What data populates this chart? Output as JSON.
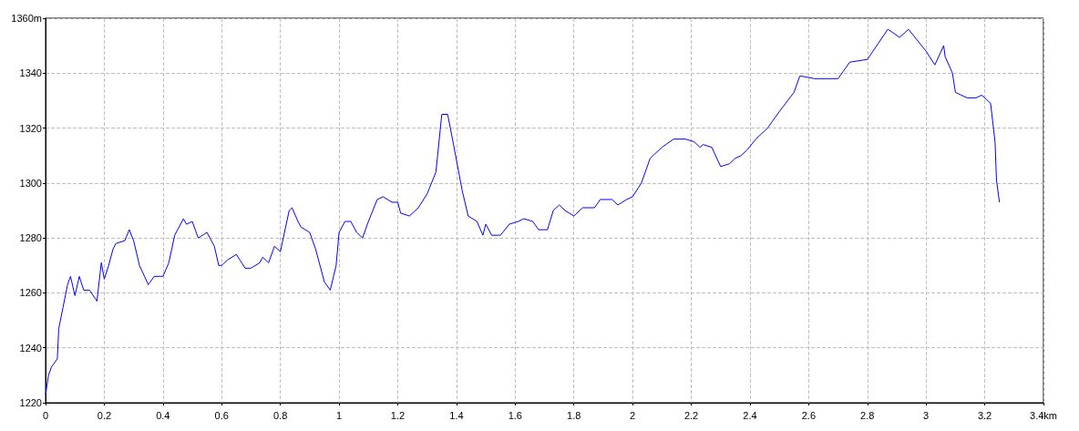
{
  "chart_data": {
    "type": "line",
    "x": [
      0,
      0.01,
      0.02,
      0.04,
      0.045,
      0.06,
      0.075,
      0.085,
      0.1,
      0.115,
      0.13,
      0.15,
      0.175,
      0.19,
      0.2,
      0.215,
      0.23,
      0.24,
      0.27,
      0.285,
      0.3,
      0.32,
      0.35,
      0.37,
      0.39,
      0.4,
      0.42,
      0.44,
      0.47,
      0.48,
      0.5,
      0.52,
      0.55,
      0.575,
      0.59,
      0.6,
      0.62,
      0.65,
      0.68,
      0.7,
      0.73,
      0.74,
      0.76,
      0.78,
      0.8,
      0.83,
      0.84,
      0.86,
      0.87,
      0.9,
      0.92,
      0.95,
      0.97,
      0.99,
      1.0,
      1.02,
      1.04,
      1.06,
      1.08,
      1.1,
      1.13,
      1.15,
      1.18,
      1.2,
      1.21,
      1.24,
      1.27,
      1.3,
      1.33,
      1.35,
      1.37,
      1.39,
      1.42,
      1.44,
      1.47,
      1.49,
      1.5,
      1.52,
      1.55,
      1.58,
      1.61,
      1.63,
      1.66,
      1.68,
      1.71,
      1.73,
      1.75,
      1.77,
      1.8,
      1.83,
      1.87,
      1.89,
      1.93,
      1.95,
      1.98,
      2.0,
      2.03,
      2.06,
      2.1,
      2.14,
      2.18,
      2.21,
      2.23,
      2.24,
      2.27,
      2.3,
      2.33,
      2.35,
      2.37,
      2.39,
      2.42,
      2.46,
      2.5,
      2.55,
      2.57,
      2.62,
      2.68,
      2.7,
      2.72,
      2.74,
      2.8,
      2.87,
      2.91,
      2.94,
      3.0,
      3.03,
      3.06,
      3.065,
      3.09,
      3.1,
      3.14,
      3.17,
      3.19,
      3.22,
      3.235,
      3.24,
      3.25
    ],
    "series": [
      {
        "color": "#0000ff",
        "values": [
          1223,
          1230,
          1233,
          1236,
          1247,
          1255,
          1263,
          1266,
          1259,
          1266,
          1261,
          1261,
          1257,
          1271,
          1265,
          1270,
          1276,
          1278,
          1279,
          1283,
          1279,
          1270,
          1263,
          1266,
          1266,
          1266,
          1271,
          1281,
          1287,
          1285,
          1286,
          1280,
          1282,
          1277,
          1270,
          1270,
          1272,
          1274,
          1269,
          1269,
          1271,
          1273,
          1271,
          1277,
          1275,
          1290,
          1291,
          1286,
          1284,
          1282,
          1276,
          1264,
          1261,
          1270,
          1282,
          1286,
          1286,
          1282,
          1280,
          1286,
          1294,
          1295,
          1293,
          1293,
          1289,
          1288,
          1291,
          1296,
          1304,
          1325,
          1325,
          1314,
          1297,
          1288,
          1286,
          1281,
          1285,
          1281,
          1281,
          1285,
          1286,
          1287,
          1286,
          1283,
          1283,
          1290,
          1292,
          1290,
          1288,
          1291,
          1291,
          1294,
          1294,
          1292,
          1294,
          1295,
          1300,
          1309,
          1313,
          1316,
          1316,
          1315,
          1313,
          1314,
          1313,
          1306,
          1307,
          1309,
          1310,
          1312,
          1316,
          1320,
          1326,
          1333,
          1339,
          1338,
          1338,
          1338,
          1341,
          1344,
          1345,
          1356,
          1353,
          1356,
          1348,
          1343,
          1350,
          1346,
          1340,
          1333,
          1331,
          1331,
          1332,
          1329,
          1315,
          1301,
          1293
        ]
      }
    ],
    "xlim": [
      0,
      3.4
    ],
    "xticks": [
      0,
      0.2,
      0.4,
      0.6,
      0.8,
      1,
      1.2,
      1.4,
      1.6,
      1.8,
      2,
      2.2,
      2.4,
      2.6,
      2.8,
      3,
      3.2,
      {
        "value": 3.4,
        "label": "3.4km"
      }
    ],
    "ylim": [
      1220,
      1360
    ],
    "yticks": [
      1220,
      1240,
      1260,
      1280,
      1300,
      1320,
      1340,
      {
        "value": 1360,
        "label": "1360m"
      }
    ],
    "grid": true,
    "marker": "none",
    "line_style": "solid"
  }
}
